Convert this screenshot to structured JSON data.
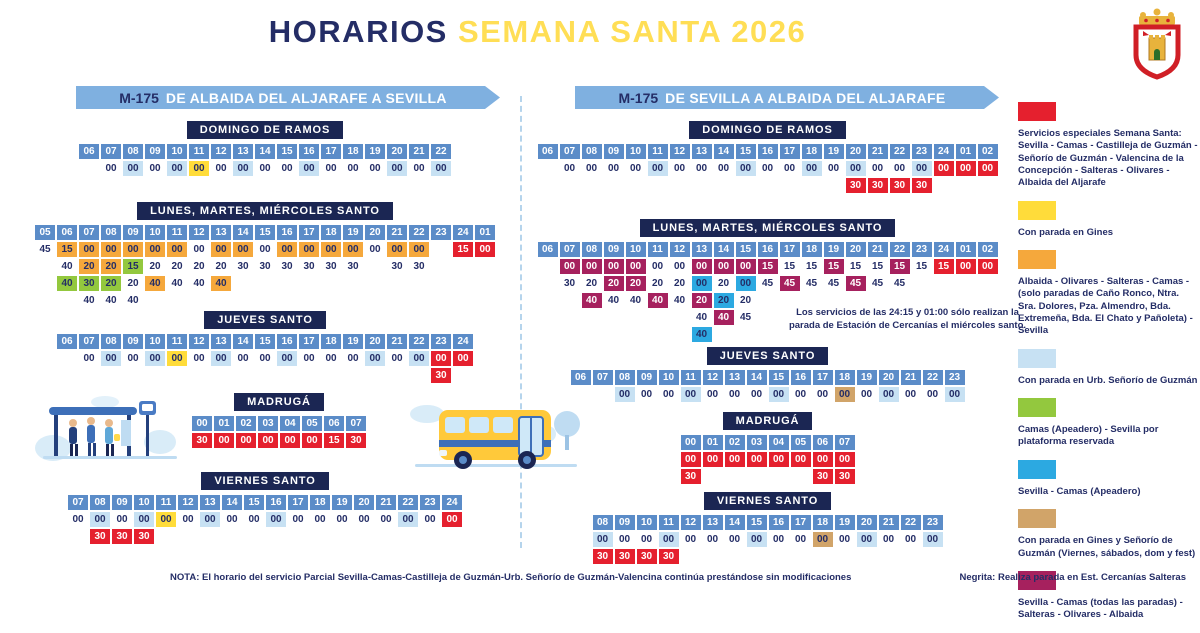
{
  "title": {
    "part1": "HORARIOS",
    "part2": "SEMANA SANTA 2026"
  },
  "cell_colors": {
    "w": "#ffffff",
    "lb": "#c7e1f3",
    "y": "#ffdc3a",
    "o": "#f5a83c",
    "g": "#93c83e",
    "r": "#e5202e",
    "m": "#a6215e",
    "c": "#2ca9e1",
    "t": "#d1a469"
  },
  "columns": [
    {
      "banner": {
        "route": "M-175",
        "dest": "DE ALBAIDA DEL ALJARAFE A SEVILLA"
      },
      "tables": [
        {
          "name": "DOMINGO DE RAMOS",
          "hours": [
            "06",
            "07",
            "08",
            "09",
            "10",
            "11",
            "12",
            "13",
            "14",
            "15",
            "16",
            "17",
            "18",
            "19",
            "20",
            "21",
            "22"
          ],
          "rows": [
            [
              null,
              "00:w",
              "00:lb",
              "00:w",
              "00:lb",
              "00:y",
              "00:w",
              "00:lb",
              "00:w",
              "00:w",
              "00:lb",
              "00:w",
              "00:w",
              "00:w",
              "00:lb",
              "00:w",
              "00:lb"
            ]
          ]
        },
        {
          "name": "LUNES, MARTES, MIÉRCOLES SANTO",
          "hours": [
            "05",
            "06",
            "07",
            "08",
            "09",
            "10",
            "11",
            "12",
            "13",
            "14",
            "15",
            "16",
            "17",
            "18",
            "19",
            "20",
            "21",
            "22",
            "23",
            "24",
            "01"
          ],
          "rows": [
            [
              "45:w",
              "15:o",
              "00:o",
              "00:o",
              "00:o",
              "00:o",
              "00:o",
              "00:w",
              "00:o",
              "00:o",
              "00:w",
              "00:o",
              "00:o",
              "00:o",
              "00:o",
              "00:w",
              "00:o",
              "00:o",
              null,
              "15:r",
              "00:r"
            ],
            [
              null,
              "40:w",
              "20:o",
              "20:o",
              "15:g",
              "20:w",
              "20:w",
              "20:w",
              "20:w",
              "30:w",
              "30:w",
              "30:w",
              "30:w",
              "30:w",
              "30:w",
              null,
              "30:w",
              "30:w",
              null,
              null,
              null
            ],
            [
              null,
              "40:g",
              "30:g",
              "20:g",
              "20:w",
              "40:o",
              "40:w",
              "40:w",
              "40:o",
              null,
              null,
              null,
              null,
              null,
              null,
              null,
              null,
              null,
              null,
              null,
              null
            ],
            [
              null,
              null,
              "40:w",
              "40:w",
              "40:w",
              null,
              null,
              null,
              null,
              null,
              null,
              null,
              null,
              null,
              null,
              null,
              null,
              null,
              null,
              null,
              null
            ]
          ]
        },
        {
          "name": "JUEVES SANTO",
          "hours": [
            "06",
            "07",
            "08",
            "09",
            "10",
            "11",
            "12",
            "13",
            "14",
            "15",
            "16",
            "17",
            "18",
            "19",
            "20",
            "21",
            "22",
            "23",
            "24"
          ],
          "rows": [
            [
              null,
              "00:w",
              "00:lb",
              "00:w",
              "00:lb",
              "00:y",
              "00:w",
              "00:lb",
              "00:w",
              "00:w",
              "00:lb",
              "00:w",
              "00:w",
              "00:w",
              "00:lb",
              "00:w",
              "00:lb",
              "00:r",
              "00:r"
            ],
            [
              null,
              null,
              null,
              null,
              null,
              null,
              null,
              null,
              null,
              null,
              null,
              null,
              null,
              null,
              null,
              null,
              null,
              "30:r",
              null
            ]
          ]
        },
        {
          "name": "MADRUGÁ",
          "hours": [
            "00",
            "01",
            "02",
            "03",
            "04",
            "05",
            "06",
            "07"
          ],
          "rows": [
            [
              "30:r",
              "00:r",
              "00:r",
              "00:r",
              "00:r",
              "00:r",
              "15:r",
              "30:r"
            ]
          ]
        },
        {
          "name": "VIERNES SANTO",
          "hours": [
            "07",
            "08",
            "09",
            "10",
            "11",
            "12",
            "13",
            "14",
            "15",
            "16",
            "17",
            "18",
            "19",
            "20",
            "21",
            "22",
            "23",
            "24"
          ],
          "rows": [
            [
              "00:w",
              "00:lb",
              "00:w",
              "00:lb",
              "00:y",
              "00:w",
              "00:lb",
              "00:w",
              "00:w",
              "00:lb",
              "00:w",
              "00:w",
              "00:w",
              "00:w",
              "00:w",
              "00:lb",
              "00:w",
              "00:r"
            ],
            [
              null,
              "30:r",
              "30:r",
              "30:r",
              null,
              null,
              null,
              null,
              null,
              null,
              null,
              null,
              null,
              null,
              null,
              null,
              null,
              null
            ]
          ]
        }
      ]
    },
    {
      "banner": {
        "route": "M-175",
        "dest": "DE SEVILLA A ALBAIDA DEL ALJARAFE"
      },
      "tables": [
        {
          "name": "DOMINGO DE RAMOS",
          "hours": [
            "06",
            "07",
            "08",
            "09",
            "10",
            "11",
            "12",
            "13",
            "14",
            "15",
            "16",
            "17",
            "18",
            "19",
            "20",
            "21",
            "22",
            "23",
            "24",
            "01",
            "02"
          ],
          "rows": [
            [
              null,
              "00:w",
              "00:w",
              "00:w",
              "00:w",
              "00:lb",
              "00:w",
              "00:w",
              "00:w",
              "00:lb",
              "00:w",
              "00:w",
              "00:lb",
              "00:w",
              "00:lb",
              "00:w",
              "00:w",
              "00:lb",
              "00:r",
              "00:r",
              "00:r"
            ],
            [
              null,
              null,
              null,
              null,
              null,
              null,
              null,
              null,
              null,
              null,
              null,
              null,
              null,
              null,
              "30:r",
              "30:r",
              "30:r",
              "30:r",
              null,
              null,
              null
            ]
          ]
        },
        {
          "name": "LUNES, MARTES, MIÉRCOLES SANTO",
          "hours": [
            "06",
            "07",
            "08",
            "09",
            "10",
            "11",
            "12",
            "13",
            "14",
            "15",
            "16",
            "17",
            "18",
            "19",
            "20",
            "21",
            "22",
            "23",
            "24",
            "01",
            "02"
          ],
          "note": "Los servicios de las 24:15 y 01:00 sólo realizan la parada de Estación de Cercanías el miércoles santo.",
          "rows": [
            [
              null,
              "00:m",
              "00:m",
              "00:m",
              "00:m",
              "00:w",
              "00:w",
              "00:m",
              "00:m",
              "00:m",
              "15:m",
              "15:w",
              "15:w",
              "15:m",
              "15:w",
              "15:w",
              "15:m",
              "15:w",
              "15:r",
              "00:r",
              "00:r"
            ],
            [
              null,
              "30:w",
              "20:w",
              "20:m",
              "20:m",
              "20:w",
              "20:w",
              "00:c",
              "20:w",
              "00:c",
              "45:w",
              "45:m",
              "45:w",
              "45:w",
              "45:m",
              "45:w",
              "45:w",
              null,
              null,
              null,
              null
            ],
            [
              null,
              null,
              "40:m",
              "40:w",
              "40:w",
              "40:m",
              "40:w",
              "20:m",
              "20:c",
              "20:w",
              null,
              null,
              null,
              null,
              null,
              null,
              null,
              null,
              null,
              null,
              null
            ],
            [
              null,
              null,
              null,
              null,
              null,
              null,
              null,
              "40:w",
              "40:m",
              "45:w",
              null,
              null,
              null,
              null,
              null,
              null,
              null,
              null,
              null,
              null,
              null
            ],
            [
              null,
              null,
              null,
              null,
              null,
              null,
              null,
              "40:c",
              null,
              null,
              null,
              null,
              null,
              null,
              null,
              null,
              null,
              null,
              null,
              null,
              null
            ]
          ]
        },
        {
          "name": "JUEVES SANTO",
          "hours": [
            "06",
            "07",
            "08",
            "09",
            "10",
            "11",
            "12",
            "13",
            "14",
            "15",
            "16",
            "17",
            "18",
            "19",
            "20",
            "21",
            "22",
            "23"
          ],
          "rows": [
            [
              null,
              null,
              "00:lb",
              "00:w",
              "00:w",
              "00:lb",
              "00:w",
              "00:w",
              "00:w",
              "00:lb",
              "00:w",
              "00:w",
              "00:t",
              "00:w",
              "00:lb",
              "00:w",
              "00:w",
              "00:lb"
            ]
          ]
        },
        {
          "name": "MADRUGÁ",
          "hours": [
            "00",
            "01",
            "02",
            "03",
            "04",
            "05",
            "06",
            "07"
          ],
          "rows": [
            [
              "00:r",
              "00:r",
              "00:r",
              "00:r",
              "00:r",
              "00:r",
              "00:r",
              "00:r"
            ],
            [
              "30:r",
              null,
              null,
              null,
              null,
              null,
              "30:r",
              "30:r"
            ]
          ]
        },
        {
          "name": "VIERNES SANTO",
          "hours": [
            "08",
            "09",
            "10",
            "11",
            "12",
            "13",
            "14",
            "15",
            "16",
            "17",
            "18",
            "19",
            "20",
            "21",
            "22",
            "23"
          ],
          "rows": [
            [
              "00:lb",
              "00:w",
              "00:w",
              "00:lb",
              "00:w",
              "00:w",
              "00:w",
              "00:lb",
              "00:w",
              "00:w",
              "00:t",
              "00:w",
              "00:lb",
              "00:w",
              "00:w",
              "00:lb"
            ],
            [
              "30:r",
              "30:r",
              "30:r",
              "30:r",
              null,
              null,
              null,
              null,
              null,
              null,
              null,
              null,
              null,
              null,
              null,
              null
            ]
          ]
        }
      ]
    }
  ],
  "legend": {
    "items": [
      {
        "color": "#e5202e",
        "bold": "Servicios especiales Semana Santa:",
        "text": " Sevilla - Camas - Castilleja de Guzmán - Señorío de Guzmán - Valencina de la Concepción - Salteras - Olivares - Albaida del Aljarafe"
      },
      {
        "color": "#ffdc3a",
        "bold": "",
        "text": "Con parada en Gines"
      },
      {
        "color": "#f5a83c",
        "bold": "",
        "text": "Albaida - Olivares - Salteras - Camas - (solo paradas de Caño Ronco, Ntra. Sra. Dolores, Pza. Almendro, Bda. Extremeña, Bda. El Chato y Pañoleta) - Sevilla"
      },
      {
        "color": "#c7e1f3",
        "bold": "",
        "text": "Con parada en Urb. Señorío de Guzmán"
      },
      {
        "color": "#93c83e",
        "bold": "",
        "text": "Camas (Apeadero) - Sevilla por plataforma reservada"
      },
      {
        "color": "#2ca9e1",
        "bold": "",
        "text": "Sevilla - Camas (Apeadero)"
      },
      {
        "color": "#d1a469",
        "bold": "",
        "text": "Con parada en Gines y Señorío de Guzmán (Viernes, sábados, dom y fest)"
      },
      {
        "color": "#a6215e",
        "bold": "",
        "text": "Sevilla - Camas (todas las paradas) - Salteras - Olivares - Albaida"
      }
    ]
  },
  "footer": {
    "note_bold": "NOTA:",
    "note": " El horario del servicio Parcial Sevilla-Camas-Castilleja de Guzmán-Urb. Señorío de Guzmán-Valencina continúa prestándose sin modificaciones",
    "negrita_bold": "Negrita:",
    "negrita": " Realiza parada en Est. Cercanías Salteras"
  }
}
